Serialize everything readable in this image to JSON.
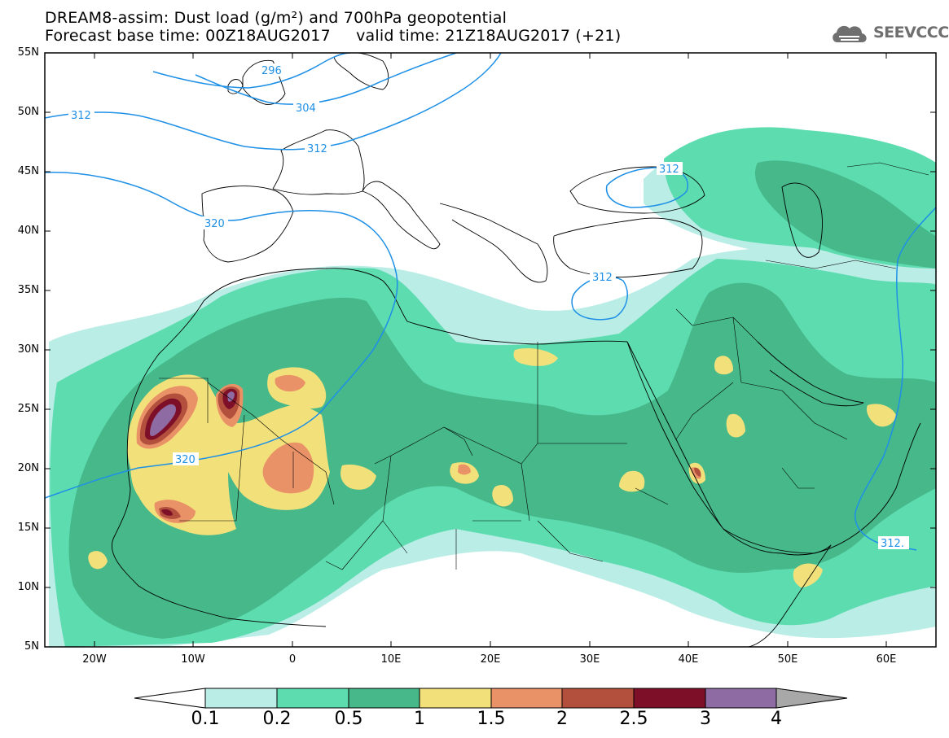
{
  "title": {
    "line1": "DREAM8-assim: Dust load (g/m²) and 700hPa geopotential",
    "line2": "Forecast base time: 00Z18AUG2017     valid time: 21Z18AUG2017 (+21)"
  },
  "logo": {
    "text": "SEEVCCC",
    "icon": "cloud-icon",
    "color": "#6f6f6f"
  },
  "map": {
    "projection": "equirectangular",
    "lon_range": [
      -25,
      65
    ],
    "lat_range": [
      5,
      55
    ],
    "lat_ticks": [
      "55N",
      "50N",
      "45N",
      "40N",
      "35N",
      "30N",
      "25N",
      "20N",
      "15N",
      "10N",
      "5N"
    ],
    "lon_ticks": [
      "20W",
      "10W",
      "0",
      "10E",
      "20E",
      "30E",
      "40E",
      "50E",
      "60E"
    ],
    "contour_labels": [
      "296",
      "304",
      "312",
      "312",
      "320",
      "320",
      "312",
      "312",
      "312."
    ],
    "contour_color": "#1e90e6"
  },
  "colorbar": {
    "labels": [
      "0.1",
      "0.2",
      "0.5",
      "1",
      "1.5",
      "2",
      "2.5",
      "3",
      "4"
    ],
    "colors": [
      "#b9ede6",
      "#5ddcb0",
      "#46b88a",
      "#f2e07a",
      "#ea9267",
      "#b2503d",
      "#7e0f28",
      "#8e6ba3"
    ],
    "over_color": "#a8a8a8",
    "under_color": "#ffffff"
  }
}
